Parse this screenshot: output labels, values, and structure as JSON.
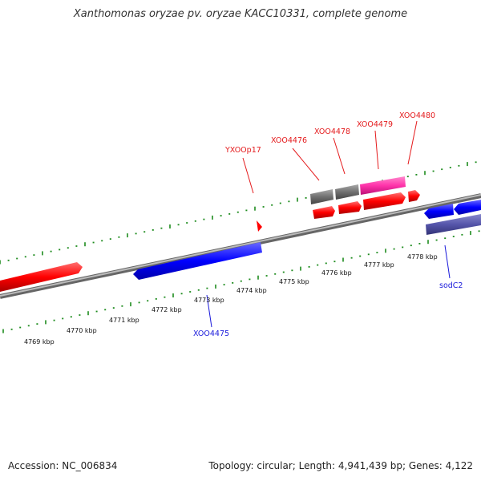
{
  "title": "Xanthomonas oryzae pv. oryzae KACC10331, complete genome",
  "footer": {
    "accession": "Accession: NC_006834",
    "topology": "Topology: circular; Length: 4,941,439 bp; Genes: 4,122"
  },
  "kbp_labels": [
    "4769 kbp",
    "4770 kbp",
    "4771 kbp",
    "4772 kbp",
    "4773 kbp",
    "4774 kbp",
    "4775 kbp",
    "4776 kbp",
    "4777 kbp",
    "4778 kbp"
  ],
  "gene_labels": [
    {
      "id": "yxoop17",
      "text": "YXOOp17",
      "color": "#e41a1c"
    },
    {
      "id": "xoo4476",
      "text": "XOO4476",
      "color": "#e41a1c"
    },
    {
      "id": "xoo4478",
      "text": "XOO4478",
      "color": "#e41a1c"
    },
    {
      "id": "xoo4479",
      "text": "XOO4479",
      "color": "#e41a1c"
    },
    {
      "id": "xoo4480",
      "text": "XOO4480",
      "color": "#e41a1c"
    },
    {
      "id": "xoo4475",
      "text": "XOO4475",
      "color": "#1a1adb"
    },
    {
      "id": "sodc2",
      "text": "sodC2",
      "color": "#1a1adb"
    }
  ],
  "colors": {
    "forward_gene": "#ff0000",
    "reverse_gene": "#0000ff",
    "gray_gene": "#707070",
    "pink_gene": "#ff33aa",
    "purple_gene": "#5555aa",
    "tick": "#1e8c1e",
    "backbone": "#888888"
  }
}
